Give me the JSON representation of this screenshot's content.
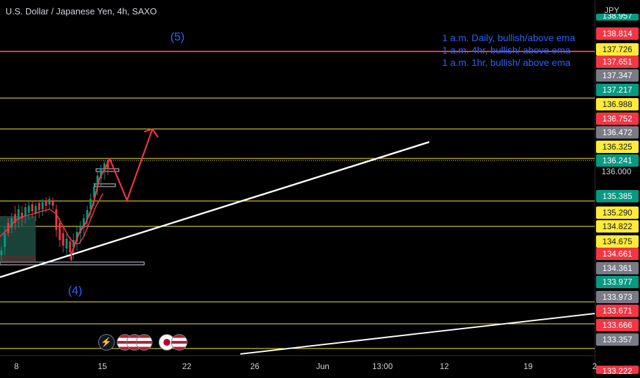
{
  "header": {
    "title": "U.S. Dollar / Japanese Yen, 4h, SAXO"
  },
  "annotations": {
    "wave5": "(5)",
    "wave4": "(4)",
    "notes": [
      "1 a.m. Daily, bullish/above ema",
      "1 a.m. 4hr, bullish/ above ema",
      "1 a.m. 1hr, bullish/ above ema"
    ]
  },
  "price_axis": {
    "currency": "JPY",
    "top_partial": "138.957",
    "tick_136": "136.000",
    "bottom_partial": "133.222",
    "labels": [
      {
        "text": "138.814",
        "bg": "#f23645",
        "fg": "#ffffff"
      },
      {
        "text": "137.726",
        "bg": "#ffeb3b",
        "fg": "#131722"
      },
      {
        "text": "137.651",
        "bg": "#f23645",
        "fg": "#ffffff"
      },
      {
        "text": "137.347",
        "bg": "#787b86",
        "fg": "#ffffff"
      },
      {
        "text": "137.217",
        "bg": "#089981",
        "fg": "#ffffff"
      },
      {
        "text": "136.988",
        "bg": "#ffeb3b",
        "fg": "#131722"
      },
      {
        "text": "136.752",
        "bg": "#f23645",
        "fg": "#ffffff"
      },
      {
        "text": "136.472",
        "bg": "#787b86",
        "fg": "#ffffff"
      },
      {
        "text": "136.325",
        "bg": "#ffeb3b",
        "fg": "#131722"
      },
      {
        "text": "136.241",
        "bg": "#089981",
        "fg": "#ffffff"
      },
      {
        "text": "135.385",
        "bg": "#089981",
        "fg": "#ffffff"
      },
      {
        "text": "135.290",
        "bg": "#ffeb3b",
        "fg": "#131722"
      },
      {
        "text": "134.822",
        "bg": "#ffeb3b",
        "fg": "#131722"
      },
      {
        "text": "134.675",
        "bg": "#ffeb3b",
        "fg": "#131722"
      },
      {
        "text": "134.661",
        "bg": "#f23645",
        "fg": "#ffffff"
      },
      {
        "text": "134.361",
        "bg": "#787b86",
        "fg": "#ffffff"
      },
      {
        "text": "133.977",
        "bg": "#089981",
        "fg": "#ffffff"
      },
      {
        "text": "133.973",
        "bg": "#787b86",
        "fg": "#ffffff"
      },
      {
        "text": "133.671",
        "bg": "#f23645",
        "fg": "#ffffff"
      },
      {
        "text": "133.666",
        "bg": "#f23645",
        "fg": "#ffffff"
      },
      {
        "text": "133.357",
        "bg": "#787b86",
        "fg": "#ffffff"
      }
    ]
  },
  "time_axis": {
    "ticks": [
      "8",
      "15",
      "22",
      "26",
      "Jun",
      "13:00",
      "12",
      "19",
      "2"
    ]
  },
  "event_icons": [
    "lightning-icon",
    "us-flag-icon",
    "us-flag-icon",
    "us-flag-icon",
    "japan-flag-icon",
    "us-flag-icon"
  ],
  "colors": {
    "background": "#000000",
    "level_line": "#ffeb3b",
    "resistance_line": "#f23645",
    "trend_line": "#ffffff",
    "projection": "#f23645",
    "text_annotation": "#2962ff",
    "candle_up": "#089981",
    "candle_down": "#f23645"
  }
}
